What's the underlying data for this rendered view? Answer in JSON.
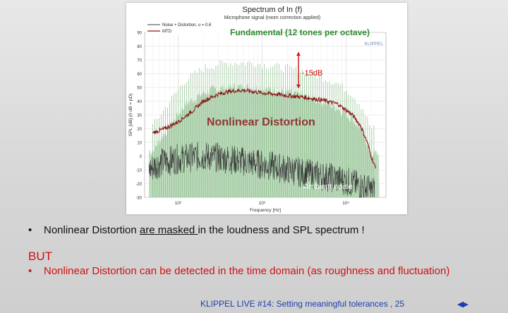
{
  "slide": {
    "bullet1_pre": "Nonlinear Distortion ",
    "bullet1_underlined": "are masked ",
    "bullet1_post": "in the loudness and SPL spectrum !",
    "but_heading": "BUT",
    "bullet2": "Nonlinear Distortion can be detected in the time domain (as roughness and fluctuation)",
    "bullet_marker": "•",
    "footer": "KLIPPEL LIVE #14: Setting meaningful tolerances , 25",
    "nav_prev": "◀",
    "nav_next": "▶"
  },
  "colors": {
    "fundamental": "#7fb87f",
    "fundamental_fill": "#a9cfa9",
    "noise_distortion": "#3a3a3a",
    "mtd": "#8b1a1a",
    "annotation_red": "#d01010",
    "annotation_green": "#2e8b2e",
    "footer_blue": "#1a3fb0"
  },
  "chart_data": {
    "type": "line",
    "title": "Spectrum of In (f)",
    "subtitle": "Microphone signal (room correction applied)",
    "xlabel": "Frequency [Hz]",
    "ylabel": "SPL [dB] (0 dB = pD)",
    "xscale": "log",
    "xlim": [
      40,
      30000
    ],
    "ylim": [
      -30,
      90
    ],
    "x_ticks": [
      {
        "value": 100,
        "label": "10²"
      },
      {
        "value": 1000,
        "label": "10³"
      },
      {
        "value": 10000,
        "label": "10⁴"
      }
    ],
    "y_ticks": [
      90,
      80,
      70,
      60,
      50,
      40,
      30,
      20,
      10,
      0,
      -10,
      -20,
      -30
    ],
    "grid": true,
    "legend_position": "top-left",
    "legend": [
      {
        "label": "Noise + Distortion, u = 0.6",
        "color_key": "noise_distortion"
      },
      {
        "label": "MTD",
        "color_key": "mtd"
      }
    ],
    "brand": "KLIPPEL",
    "annotations": {
      "fundamental": "Fundamental (12 tones per octave)",
      "delta": "-15dB",
      "nonlinear": "Nonlinear Distortion",
      "ambient": "Ambient noise"
    },
    "series": [
      {
        "name": "Fundamental (12 tones per octave)",
        "role": "fundamental_envelope",
        "x": [
          50,
          80,
          120,
          200,
          300,
          500,
          800,
          1200,
          2000,
          3000,
          5000,
          8000,
          12000,
          16000,
          20000
        ],
        "y": [
          22,
          40,
          55,
          64,
          67,
          68,
          68,
          66,
          64,
          62,
          58,
          53,
          45,
          35,
          20
        ]
      },
      {
        "name": "MTD",
        "x": [
          50,
          70,
          100,
          150,
          200,
          300,
          400,
          600,
          1000,
          1500,
          2000,
          3000,
          5000,
          8000,
          12000,
          15000,
          18000,
          20000,
          23000
        ],
        "y": [
          17,
          20,
          25,
          33,
          40,
          45,
          47,
          48,
          46,
          45,
          44,
          43,
          41,
          38,
          30,
          22,
          10,
          0,
          -10
        ]
      },
      {
        "name": "Noise + Distortion, u = 0.6",
        "role": "ambient_noise",
        "x": [
          45,
          60,
          100,
          200,
          400,
          800,
          1500,
          3000,
          6000,
          10000,
          15000,
          20000
        ],
        "y": [
          -10,
          -5,
          -2,
          0,
          -2,
          -5,
          -8,
          -12,
          -15,
          -18,
          -22,
          -25
        ]
      }
    ]
  }
}
